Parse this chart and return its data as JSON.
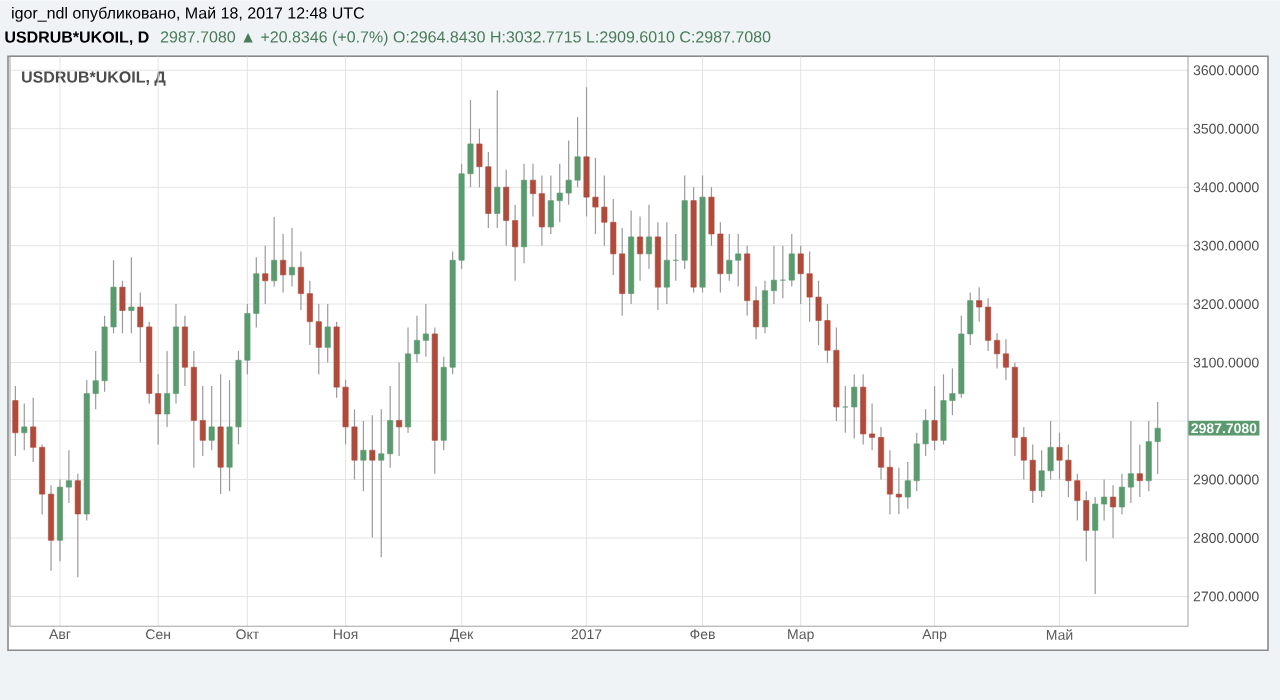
{
  "chart_data": {
    "type": "candlestick",
    "title": "USDRUB*UKOIL, D",
    "subtitle": "2987.7080 ▲ +20.8346 (+0.7%) O:2964.8430 H:3032.7715 L:2909.6010 C:2987.7080",
    "annotations": [
      "igor_ndl опубликовано, Май 18, 2017 12:48 UTC",
      "USDRUB*UKOIL, Д",
      "2987.7080"
    ],
    "categories": [
      null,
      null,
      null,
      null,
      null,
      "Авг",
      null,
      null,
      null,
      null,
      null,
      null,
      null,
      null,
      null,
      null,
      "Сен",
      null,
      null,
      null,
      null,
      null,
      null,
      null,
      null,
      null,
      "Окт",
      null,
      null,
      null,
      null,
      null,
      null,
      null,
      null,
      null,
      null,
      "Ноя",
      null,
      null,
      null,
      null,
      null,
      null,
      null,
      null,
      null,
      null,
      null,
      null,
      "Дек",
      null,
      null,
      null,
      null,
      null,
      null,
      null,
      null,
      null,
      null,
      null,
      null,
      null,
      "2017",
      null,
      null,
      null,
      null,
      null,
      null,
      null,
      null,
      null,
      null,
      null,
      null,
      "Фев",
      null,
      null,
      null,
      null,
      null,
      null,
      null,
      null,
      null,
      null,
      "Мар",
      null,
      null,
      null,
      null,
      null,
      null,
      null,
      null,
      null,
      null,
      null,
      null,
      null,
      null,
      "Апр",
      null,
      null,
      null,
      null,
      null,
      null,
      null,
      null,
      null,
      null,
      null,
      null,
      null,
      "Май",
      null,
      null,
      null,
      null,
      null,
      null,
      null,
      null,
      null,
      null,
      null
    ],
    "ohlc": [
      [
        3035,
        3060,
        2940,
        2980
      ],
      [
        2980,
        3030,
        2950,
        2990
      ],
      [
        2990,
        3040,
        2930,
        2955
      ],
      [
        2955,
        2960,
        2840,
        2875
      ],
      [
        2875,
        2890,
        2744,
        2796
      ],
      [
        2796,
        2900,
        2760,
        2887
      ],
      [
        2887,
        2950,
        2860,
        2898
      ],
      [
        2898,
        2910,
        2733,
        2841
      ],
      [
        2841,
        3070,
        2830,
        3047
      ],
      [
        3047,
        3120,
        3020,
        3069
      ],
      [
        3069,
        3180,
        3050,
        3161
      ],
      [
        3161,
        3275,
        3150,
        3229
      ],
      [
        3229,
        3240,
        3150,
        3189
      ],
      [
        3189,
        3280,
        3150,
        3195
      ],
      [
        3195,
        3220,
        3100,
        3161
      ],
      [
        3161,
        3170,
        3030,
        3047
      ],
      [
        3047,
        3080,
        2960,
        3012
      ],
      [
        3012,
        3120,
        2990,
        3047
      ],
      [
        3047,
        3200,
        3030,
        3161
      ],
      [
        3161,
        3180,
        3060,
        3092
      ],
      [
        3092,
        3120,
        2920,
        3001
      ],
      [
        3001,
        3060,
        2940,
        2967
      ],
      [
        2967,
        3060,
        2950,
        2990
      ],
      [
        2990,
        3080,
        2875,
        2921
      ],
      [
        2921,
        3070,
        2880,
        2990
      ],
      [
        2990,
        3120,
        2960,
        3104
      ],
      [
        3104,
        3200,
        3080,
        3184
      ],
      [
        3184,
        3280,
        3160,
        3252
      ],
      [
        3252,
        3300,
        3200,
        3240
      ],
      [
        3240,
        3349,
        3230,
        3275
      ],
      [
        3275,
        3320,
        3220,
        3250
      ],
      [
        3250,
        3330,
        3230,
        3263
      ],
      [
        3263,
        3290,
        3190,
        3218
      ],
      [
        3218,
        3240,
        3130,
        3170
      ],
      [
        3170,
        3200,
        3080,
        3126
      ],
      [
        3126,
        3200,
        3100,
        3161
      ],
      [
        3161,
        3170,
        3040,
        3058
      ],
      [
        3058,
        3070,
        2960,
        2990
      ],
      [
        2990,
        3020,
        2900,
        2933
      ],
      [
        2933,
        3000,
        2880,
        2950
      ],
      [
        2950,
        3010,
        2801,
        2933
      ],
      [
        2933,
        3020,
        2767,
        2944
      ],
      [
        2944,
        3060,
        2920,
        3001
      ],
      [
        3001,
        3100,
        2940,
        2990
      ],
      [
        2990,
        3160,
        2980,
        3115
      ],
      [
        3115,
        3180,
        3100,
        3138
      ],
      [
        3138,
        3200,
        3110,
        3149
      ],
      [
        3149,
        3160,
        2910,
        2967
      ],
      [
        2967,
        3110,
        2950,
        3092
      ],
      [
        3092,
        3290,
        3080,
        3275
      ],
      [
        3275,
        3440,
        3260,
        3423
      ],
      [
        3423,
        3549,
        3400,
        3474
      ],
      [
        3474,
        3500,
        3400,
        3435
      ],
      [
        3435,
        3460,
        3330,
        3355
      ],
      [
        3355,
        3566,
        3330,
        3400
      ],
      [
        3400,
        3430,
        3300,
        3343
      ],
      [
        3343,
        3370,
        3240,
        3298
      ],
      [
        3298,
        3440,
        3270,
        3412
      ],
      [
        3412,
        3440,
        3350,
        3389
      ],
      [
        3389,
        3420,
        3300,
        3332
      ],
      [
        3332,
        3420,
        3320,
        3377
      ],
      [
        3377,
        3440,
        3340,
        3390
      ],
      [
        3390,
        3480,
        3370,
        3412
      ],
      [
        3412,
        3520,
        3400,
        3452
      ],
      [
        3452,
        3571,
        3350,
        3383
      ],
      [
        3383,
        3450,
        3320,
        3366
      ],
      [
        3366,
        3420,
        3300,
        3340
      ],
      [
        3340,
        3380,
        3250,
        3286
      ],
      [
        3286,
        3330,
        3180,
        3218
      ],
      [
        3218,
        3360,
        3200,
        3315
      ],
      [
        3315,
        3350,
        3240,
        3286
      ],
      [
        3286,
        3370,
        3260,
        3315
      ],
      [
        3315,
        3340,
        3190,
        3229
      ],
      [
        3229,
        3340,
        3200,
        3275
      ],
      [
        3275,
        3320,
        3240,
        3275
      ],
      [
        3275,
        3420,
        3260,
        3377
      ],
      [
        3377,
        3400,
        3220,
        3229
      ],
      [
        3229,
        3420,
        3220,
        3383
      ],
      [
        3383,
        3400,
        3300,
        3320
      ],
      [
        3320,
        3340,
        3220,
        3252
      ],
      [
        3252,
        3320,
        3240,
        3275
      ],
      [
        3275,
        3320,
        3230,
        3286
      ],
      [
        3286,
        3300,
        3180,
        3206
      ],
      [
        3206,
        3230,
        3140,
        3161
      ],
      [
        3161,
        3240,
        3150,
        3223
      ],
      [
        3223,
        3300,
        3200,
        3241
      ],
      [
        3241,
        3300,
        3210,
        3241
      ],
      [
        3241,
        3320,
        3230,
        3286
      ],
      [
        3286,
        3300,
        3200,
        3252
      ],
      [
        3252,
        3290,
        3170,
        3212
      ],
      [
        3212,
        3240,
        3130,
        3172
      ],
      [
        3172,
        3200,
        3100,
        3121
      ],
      [
        3121,
        3160,
        3000,
        3024
      ],
      [
        3024,
        3060,
        2980,
        3024
      ],
      [
        3024,
        3080,
        2970,
        3058
      ],
      [
        3058,
        3080,
        2960,
        2978
      ],
      [
        2978,
        3030,
        2950,
        2972
      ],
      [
        2972,
        2990,
        2900,
        2921
      ],
      [
        2921,
        2950,
        2840,
        2875
      ],
      [
        2875,
        2920,
        2841,
        2870
      ],
      [
        2870,
        2930,
        2850,
        2898
      ],
      [
        2898,
        2980,
        2880,
        2961
      ],
      [
        2961,
        3020,
        2940,
        3001
      ],
      [
        3001,
        3060,
        2950,
        2967
      ],
      [
        2967,
        3080,
        2960,
        3035
      ],
      [
        3035,
        3090,
        3010,
        3047
      ],
      [
        3047,
        3180,
        3040,
        3149
      ],
      [
        3149,
        3220,
        3130,
        3206
      ],
      [
        3206,
        3229,
        3170,
        3195
      ],
      [
        3195,
        3210,
        3120,
        3138
      ],
      [
        3138,
        3150,
        3090,
        3115
      ],
      [
        3115,
        3140,
        3070,
        3092
      ],
      [
        3092,
        3100,
        2940,
        2972
      ],
      [
        2972,
        2990,
        2900,
        2933
      ],
      [
        2933,
        2960,
        2860,
        2881
      ],
      [
        2881,
        2950,
        2870,
        2915
      ],
      [
        2915,
        3000,
        2900,
        2955
      ],
      [
        2955,
        2980,
        2900,
        2933
      ],
      [
        2933,
        2960,
        2870,
        2898
      ],
      [
        2898,
        2910,
        2830,
        2864
      ],
      [
        2864,
        2880,
        2760,
        2813
      ],
      [
        2813,
        2870,
        2704,
        2858
      ],
      [
        2858,
        2900,
        2830,
        2870
      ],
      [
        2870,
        2890,
        2800,
        2853
      ],
      [
        2853,
        2910,
        2840,
        2887
      ],
      [
        2887,
        3000,
        2860,
        2910
      ],
      [
        2910,
        2960,
        2870,
        2898
      ],
      [
        2898,
        3000,
        2880,
        2964.843
      ],
      [
        2964.843,
        3032.7715,
        2909.601,
        2987.708
      ]
    ],
    "ylim": [
      2649,
      3624
    ],
    "yticks": [
      {
        "value": 2700,
        "label": "2700.0000"
      },
      {
        "value": 2800,
        "label": "2800.0000"
      },
      {
        "value": 2900,
        "label": "2900.0000"
      },
      {
        "value": 3000,
        "label": null
      },
      {
        "value": 3100,
        "label": "3100.0000"
      },
      {
        "value": 3200,
        "label": "3200.0000"
      },
      {
        "value": 3300,
        "label": "3300.0000"
      },
      {
        "value": 3400,
        "label": "3400.0000"
      },
      {
        "value": 3500,
        "label": "3500.0000"
      },
      {
        "value": 3600,
        "label": "3600.0000"
      }
    ],
    "grid": true
  }
}
